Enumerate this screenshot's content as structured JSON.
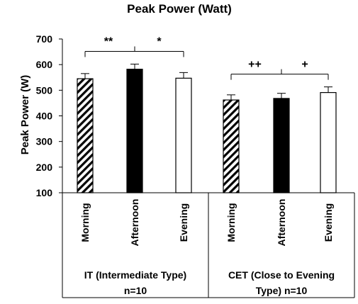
{
  "chart_data": {
    "type": "bar",
    "title": "Peak Power (Watt)",
    "ylabel": "Peak Power (W)",
    "ylim": [
      100,
      700
    ],
    "yticks": [
      100,
      200,
      300,
      400,
      500,
      600,
      700
    ],
    "grid": false,
    "groups": [
      {
        "label_lines": [
          "IT (Intermediate Type)",
          "n=10"
        ],
        "bars": [
          {
            "category": "Morning",
            "value": 545,
            "error": 20,
            "fill": "hatched"
          },
          {
            "category": "Afternoon",
            "value": 582,
            "error": 20,
            "fill": "solid"
          },
          {
            "category": "Evening",
            "value": 547,
            "error": 22,
            "fill": "empty"
          }
        ],
        "significance": {
          "left": "**",
          "right": "*"
        }
      },
      {
        "label_lines": [
          "CET (Close to Evening",
          "Type) n=10"
        ],
        "bars": [
          {
            "category": "Morning",
            "value": 462,
            "error": 20,
            "fill": "hatched"
          },
          {
            "category": "Afternoon",
            "value": 468,
            "error": 20,
            "fill": "solid"
          },
          {
            "category": "Evening",
            "value": 491,
            "error": 22,
            "fill": "empty"
          }
        ],
        "significance": {
          "left": "++",
          "right": "+"
        }
      }
    ]
  },
  "colors": {
    "bar": "#000000",
    "background": "#ffffff"
  }
}
